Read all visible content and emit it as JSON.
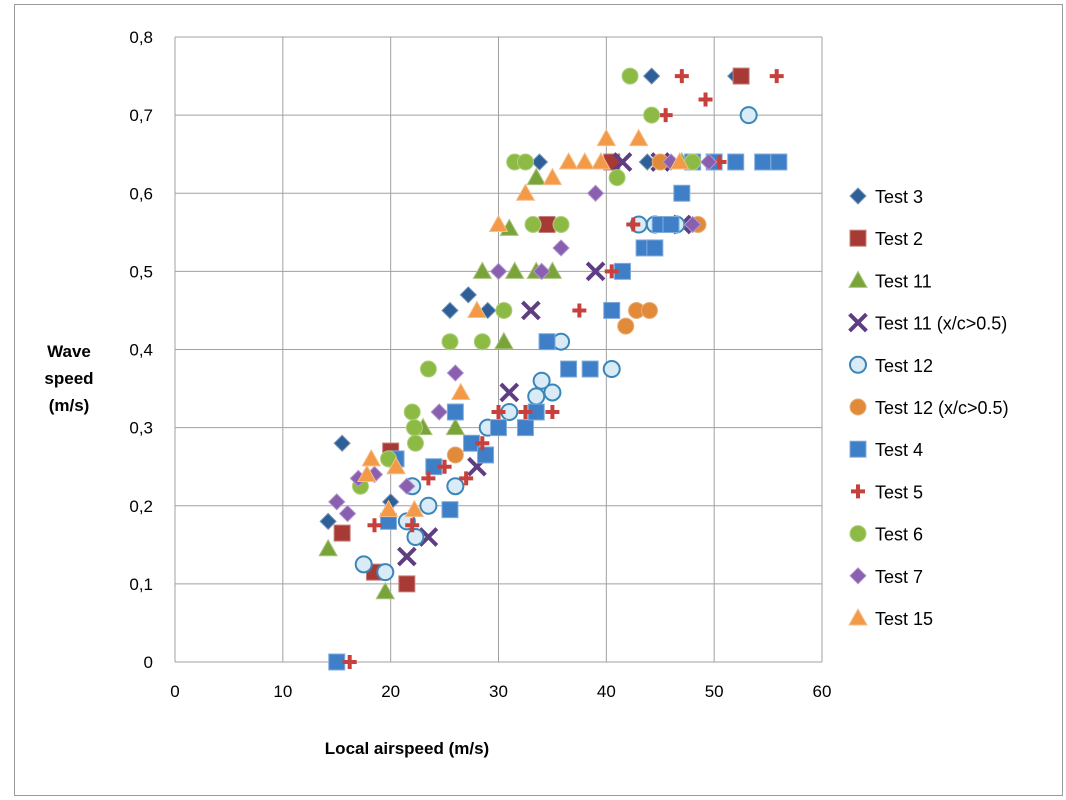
{
  "chart_data": {
    "type": "scatter",
    "title": "",
    "xlabel": "Local airspeed (m/s)",
    "ylabel": [
      "Wave",
      "speed",
      "(m/s)"
    ],
    "xlim": [
      0,
      60
    ],
    "ylim": [
      0,
      0.8
    ],
    "xticks": [
      "0",
      "10",
      "20",
      "30",
      "40",
      "50",
      "60"
    ],
    "yticks": [
      "0",
      "0,1",
      "0,2",
      "0,3",
      "0,4",
      "0,5",
      "0,6",
      "0,7",
      "0,8"
    ],
    "grid": true,
    "legend_position": "right",
    "series": [
      {
        "name": "Test 3",
        "marker": "diamond",
        "color": "#2e5f96",
        "points": [
          [
            14.2,
            0.18
          ],
          [
            15.5,
            0.28
          ],
          [
            20.0,
            0.205
          ],
          [
            25.5,
            0.45
          ],
          [
            27.2,
            0.47
          ],
          [
            29.0,
            0.45
          ],
          [
            33.8,
            0.64
          ],
          [
            44.2,
            0.75
          ],
          [
            52.0,
            0.75
          ],
          [
            43.8,
            0.64
          ]
        ]
      },
      {
        "name": "Test 2",
        "marker": "square",
        "color": "#a83a36",
        "points": [
          [
            15.5,
            0.165
          ],
          [
            18.5,
            0.115
          ],
          [
            20.0,
            0.27
          ],
          [
            21.5,
            0.1
          ],
          [
            34.5,
            0.56
          ],
          [
            52.5,
            0.75
          ],
          [
            40.5,
            0.64
          ]
        ]
      },
      {
        "name": "Test 11",
        "marker": "triangle",
        "color": "#7aa43a",
        "points": [
          [
            14.2,
            0.145
          ],
          [
            19.5,
            0.09
          ],
          [
            23.0,
            0.3
          ],
          [
            26.0,
            0.3
          ],
          [
            28.5,
            0.5
          ],
          [
            30.5,
            0.41
          ],
          [
            31.0,
            0.555
          ],
          [
            31.5,
            0.5
          ],
          [
            33.5,
            0.5
          ],
          [
            33.5,
            0.62
          ],
          [
            35.0,
            0.5
          ],
          [
            47.0,
            0.64
          ]
        ]
      },
      {
        "name": "Test 11 (x/c>0.5)",
        "marker": "x",
        "color": "#5e3d82",
        "points": [
          [
            21.5,
            0.135
          ],
          [
            23.5,
            0.16
          ],
          [
            28.0,
            0.25
          ],
          [
            31.0,
            0.345
          ],
          [
            33.0,
            0.45
          ],
          [
            39.0,
            0.5
          ],
          [
            41.5,
            0.64
          ],
          [
            45.0,
            0.64
          ],
          [
            47.0,
            0.56
          ]
        ]
      },
      {
        "name": "Test 12",
        "marker": "circle-open",
        "color": "#3a86b8",
        "points": [
          [
            17.5,
            0.125
          ],
          [
            19.5,
            0.115
          ],
          [
            21.5,
            0.18
          ],
          [
            22.0,
            0.225
          ],
          [
            22.3,
            0.16
          ],
          [
            23.5,
            0.2
          ],
          [
            26.0,
            0.225
          ],
          [
            29.0,
            0.3
          ],
          [
            31.0,
            0.32
          ],
          [
            33.5,
            0.34
          ],
          [
            34.0,
            0.36
          ],
          [
            35.0,
            0.345
          ],
          [
            35.8,
            0.41
          ],
          [
            40.5,
            0.375
          ],
          [
            43.0,
            0.56
          ],
          [
            44.5,
            0.56
          ],
          [
            46.5,
            0.56
          ],
          [
            53.2,
            0.7
          ]
        ]
      },
      {
        "name": "Test 12 (x/c>0.5)",
        "marker": "circle",
        "color": "#e08a3a",
        "points": [
          [
            26.0,
            0.265
          ],
          [
            41.8,
            0.43
          ],
          [
            42.8,
            0.45
          ],
          [
            44.0,
            0.45
          ],
          [
            45.0,
            0.64
          ],
          [
            48.5,
            0.56
          ]
        ]
      },
      {
        "name": "Test 4",
        "marker": "square",
        "color": "#3f7fc8",
        "points": [
          [
            15.0,
            0.0
          ],
          [
            19.8,
            0.18
          ],
          [
            20.5,
            0.26
          ],
          [
            24.0,
            0.25
          ],
          [
            25.5,
            0.195
          ],
          [
            26.0,
            0.32
          ],
          [
            27.5,
            0.28
          ],
          [
            28.8,
            0.265
          ],
          [
            30.0,
            0.3
          ],
          [
            32.5,
            0.3
          ],
          [
            33.5,
            0.32
          ],
          [
            34.5,
            0.41
          ],
          [
            36.5,
            0.375
          ],
          [
            38.5,
            0.375
          ],
          [
            40.5,
            0.45
          ],
          [
            41.5,
            0.5
          ],
          [
            43.5,
            0.53
          ],
          [
            44.5,
            0.53
          ],
          [
            45.0,
            0.56
          ],
          [
            46.0,
            0.56
          ],
          [
            47.0,
            0.6
          ],
          [
            48.0,
            0.64
          ],
          [
            50.0,
            0.64
          ],
          [
            52.0,
            0.64
          ],
          [
            54.5,
            0.64
          ],
          [
            56.0,
            0.64
          ]
        ]
      },
      {
        "name": "Test 5",
        "marker": "plus",
        "color": "#c8403c",
        "points": [
          [
            16.2,
            0.0
          ],
          [
            18.5,
            0.175
          ],
          [
            22.0,
            0.175
          ],
          [
            23.5,
            0.235
          ],
          [
            25.0,
            0.25
          ],
          [
            27.0,
            0.235
          ],
          [
            28.5,
            0.28
          ],
          [
            30.0,
            0.32
          ],
          [
            32.5,
            0.32
          ],
          [
            35.0,
            0.32
          ],
          [
            37.5,
            0.45
          ],
          [
            40.5,
            0.5
          ],
          [
            42.5,
            0.56
          ],
          [
            45.5,
            0.7
          ],
          [
            47.0,
            0.75
          ],
          [
            49.2,
            0.72
          ],
          [
            50.5,
            0.64
          ],
          [
            55.8,
            0.75
          ]
        ]
      },
      {
        "name": "Test 6",
        "marker": "circle",
        "color": "#8cba45",
        "points": [
          [
            17.2,
            0.225
          ],
          [
            19.8,
            0.26
          ],
          [
            22.0,
            0.32
          ],
          [
            22.2,
            0.3
          ],
          [
            22.3,
            0.28
          ],
          [
            23.5,
            0.375
          ],
          [
            25.5,
            0.41
          ],
          [
            28.5,
            0.41
          ],
          [
            30.5,
            0.45
          ],
          [
            31.5,
            0.64
          ],
          [
            32.5,
            0.64
          ],
          [
            33.2,
            0.56
          ],
          [
            35.8,
            0.56
          ],
          [
            41.0,
            0.62
          ],
          [
            42.2,
            0.75
          ],
          [
            44.2,
            0.7
          ],
          [
            48.0,
            0.64
          ]
        ]
      },
      {
        "name": "Test 7",
        "marker": "diamond",
        "color": "#8a5fb0",
        "points": [
          [
            15.0,
            0.205
          ],
          [
            16.0,
            0.19
          ],
          [
            17.0,
            0.235
          ],
          [
            18.5,
            0.24
          ],
          [
            21.5,
            0.225
          ],
          [
            24.5,
            0.32
          ],
          [
            26.0,
            0.37
          ],
          [
            30.0,
            0.5
          ],
          [
            34.0,
            0.5
          ],
          [
            35.8,
            0.53
          ],
          [
            39.0,
            0.6
          ],
          [
            46.0,
            0.64
          ],
          [
            48.0,
            0.56
          ],
          [
            49.5,
            0.64
          ]
        ]
      },
      {
        "name": "Test 15",
        "marker": "triangle",
        "color": "#f29a48",
        "points": [
          [
            17.8,
            0.24
          ],
          [
            18.2,
            0.26
          ],
          [
            19.8,
            0.195
          ],
          [
            20.5,
            0.25
          ],
          [
            22.2,
            0.195
          ],
          [
            26.5,
            0.345
          ],
          [
            28.0,
            0.45
          ],
          [
            30.0,
            0.56
          ],
          [
            32.5,
            0.6
          ],
          [
            35.0,
            0.62
          ],
          [
            36.5,
            0.64
          ],
          [
            38.0,
            0.64
          ],
          [
            39.5,
            0.64
          ],
          [
            40.0,
            0.67
          ],
          [
            43.0,
            0.67
          ],
          [
            46.8,
            0.64
          ]
        ]
      }
    ]
  }
}
